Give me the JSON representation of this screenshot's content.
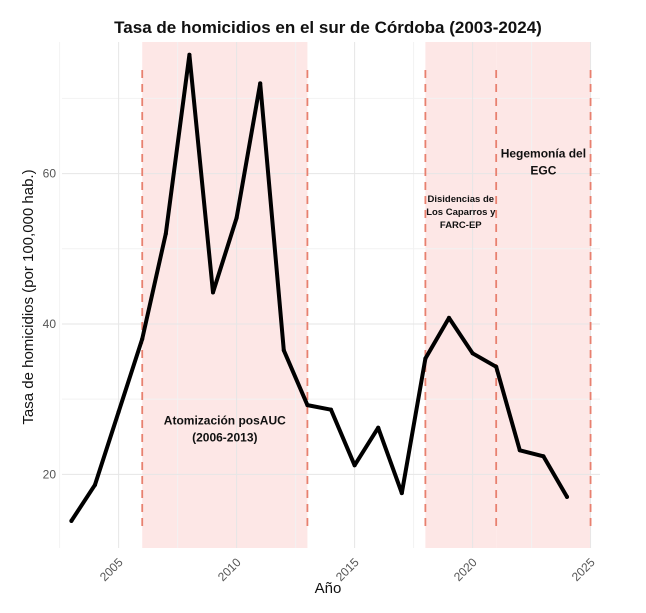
{
  "chart_data": {
    "type": "line",
    "title": "Tasa de homicidios en el sur de Córdoba (2003-2024)",
    "xlabel": "Año",
    "ylabel": "Tasa de homicidios (por 100,000 hab.)",
    "xlim": [
      2002.6,
      2025.4
    ],
    "ylim": [
      10.2,
      77.5
    ],
    "x_ticks": [
      2005,
      2010,
      2015,
      2020,
      2025
    ],
    "y_ticks": [
      20,
      40,
      60
    ],
    "grid": true,
    "colors": {
      "line": "#000000",
      "shade": "#fde7e6",
      "divider": "#e8806f",
      "grid_major": "#e6e6e6",
      "grid_minor": "#f2f2f2"
    },
    "series": [
      {
        "x": [
          2003,
          2004,
          2005,
          2006,
          2007,
          2008,
          2009,
          2010,
          2011,
          2012,
          2013,
          2014,
          2015,
          2016,
          2017,
          2018,
          2019,
          2020,
          2021,
          2022,
          2023,
          2024
        ],
        "values": [
          13.8,
          18.6,
          28.3,
          38.0,
          52.0,
          75.8,
          44.2,
          54.1,
          72.0,
          36.5,
          29.2,
          28.6,
          21.2,
          26.2,
          17.5,
          35.4,
          40.8,
          36.1,
          34.3,
          23.2,
          22.4,
          17.0
        ]
      }
    ],
    "periods": [
      {
        "start": 2006,
        "end": 2013,
        "label_lines": [
          "Atomización posAUC",
          "(2006-2013)"
        ],
        "label_x": 2009.5,
        "label_y": 25.5
      },
      {
        "start": 2018,
        "end": 2021,
        "label_lines": [
          "Disidencias de",
          "Los Caparros y",
          "FARC-EP"
        ],
        "label_x": 2019.5,
        "label_y": 54.5
      },
      {
        "start": 2021,
        "end": 2025,
        "label_lines": [
          "Hegemonía del",
          "EGC"
        ],
        "label_x": 2023.0,
        "label_y": 61.0
      }
    ],
    "dividers": [
      2006,
      2013,
      2018,
      2021,
      2025
    ]
  }
}
